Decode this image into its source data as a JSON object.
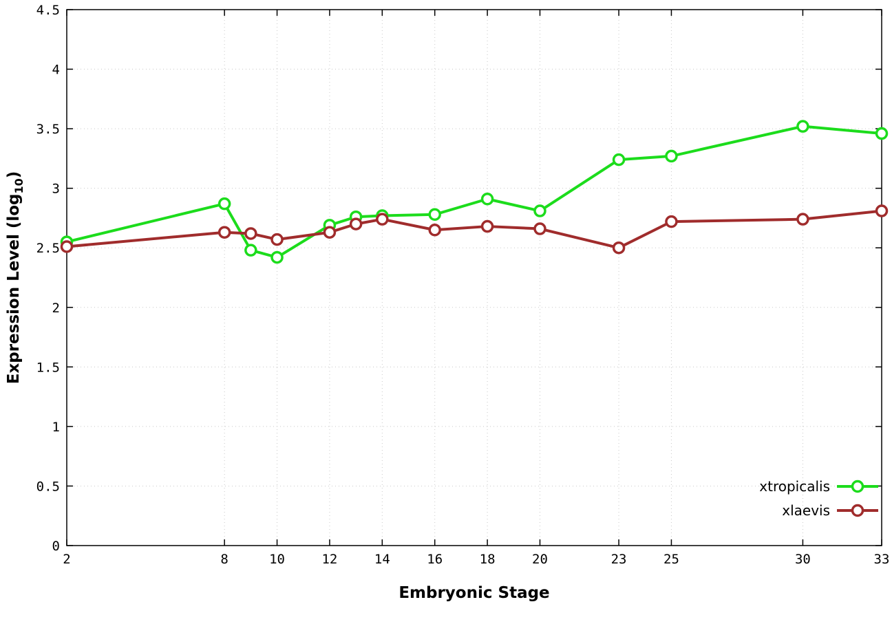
{
  "chart_data": {
    "type": "line",
    "title": "",
    "xlabel": "Embryonic Stage",
    "ylabel": "Expression Level (log10)",
    "ylabel_parts": {
      "pre": "Expression Level (log",
      "sub": "10",
      "post": ")"
    },
    "xlim": [
      2,
      33
    ],
    "ylim": [
      0,
      4.5
    ],
    "xticks": [
      2,
      8,
      10,
      12,
      14,
      16,
      18,
      20,
      23,
      25,
      30,
      33
    ],
    "xtick_labels": [
      "2",
      "8",
      "10",
      "12",
      "14",
      "16",
      "18",
      "20",
      "23",
      "25",
      "30",
      "33"
    ],
    "yticks": [
      0,
      0.5,
      1,
      1.5,
      2,
      2.5,
      3,
      3.5,
      4,
      4.5
    ],
    "ytick_labels": [
      "0",
      "0.5",
      "1",
      "1.5",
      "2",
      "2.5",
      "3",
      "3.5",
      "4",
      "4.5"
    ],
    "grid": true,
    "grid_color": "#c8c8c8",
    "axis_color": "#000000",
    "background_color": "#ffffff",
    "legend_position": "bottom-right",
    "x": [
      2,
      8,
      9,
      10,
      12,
      13,
      14,
      16,
      18,
      20,
      23,
      25,
      30,
      33
    ],
    "series": [
      {
        "name": "xtropicalis",
        "color": "#1cdc1c",
        "marker": "open-circle",
        "values": [
          2.55,
          2.87,
          2.48,
          2.42,
          2.69,
          2.76,
          2.77,
          2.78,
          2.91,
          2.81,
          3.24,
          3.27,
          3.52,
          3.46
        ]
      },
      {
        "name": "xlaevis",
        "color": "#a02c2c",
        "marker": "open-circle",
        "values": [
          2.51,
          2.63,
          2.62,
          2.57,
          2.63,
          2.7,
          2.74,
          2.65,
          2.68,
          2.66,
          2.5,
          2.72,
          2.74,
          2.81
        ]
      }
    ]
  }
}
